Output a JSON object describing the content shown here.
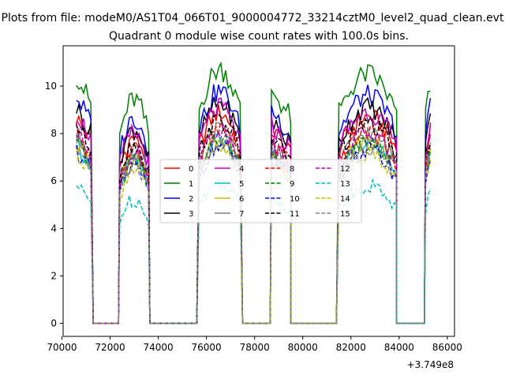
{
  "figure": {
    "suptitle": "Plots from file: modeM0/AS1T04_066T01_9000004772_33214cztM0_level2_quad_clean.evt",
    "title": "Quadrant 0 module wise count rates with 100.0s bins."
  },
  "chart_data": {
    "type": "line",
    "title": "Quadrant 0 module wise count rates with 100.0s bins.",
    "xlabel": "",
    "ylabel": "",
    "x_offset_label": "+3.749e8",
    "xlim": [
      70050,
      86300
    ],
    "ylim": [
      -0.55,
      11.7
    ],
    "xticks": [
      70000,
      72000,
      74000,
      76000,
      78000,
      80000,
      82000,
      84000,
      86000
    ],
    "xtick_labels": [
      "70000",
      "72000",
      "74000",
      "76000",
      "78000",
      "80000",
      "82000",
      "84000",
      "86000"
    ],
    "yticks": [
      0,
      2,
      4,
      6,
      8,
      10
    ],
    "ytick_labels": [
      "0",
      "2",
      "4",
      "6",
      "8",
      "10"
    ],
    "grid": false,
    "legend": {
      "placement": "center",
      "ncol": 4
    },
    "gaps_x": [
      [
        71300,
        72350
      ],
      [
        73650,
        75600
      ],
      [
        77500,
        78650
      ],
      [
        79500,
        81400
      ],
      [
        83900,
        85050
      ]
    ],
    "segments": [
      {
        "x_start": 70600,
        "x_end": 71200,
        "shape": "fall",
        "base": 1.0
      },
      {
        "x_start": 72400,
        "x_end": 73600,
        "shape": "hump",
        "base": 0.9
      },
      {
        "x_start": 75700,
        "x_end": 77400,
        "shape": "hump",
        "base": 1.02
      },
      {
        "x_start": 78700,
        "x_end": 79450,
        "shape": "fall",
        "base": 0.94
      },
      {
        "x_start": 81500,
        "x_end": 83850,
        "shape": "hump",
        "base": 1.0
      },
      {
        "x_start": 85100,
        "x_end": 85300,
        "shape": "rise",
        "base": 0.95
      }
    ],
    "series": [
      {
        "name": "0",
        "color": "#ff0000",
        "dash": "solid",
        "level": 8.7
      },
      {
        "name": "1",
        "color": "#008000",
        "dash": "solid",
        "level": 10.5
      },
      {
        "name": "2",
        "color": "#0000ff",
        "dash": "solid",
        "level": 9.6
      },
      {
        "name": "3",
        "color": "#000000",
        "dash": "solid",
        "level": 9.1
      },
      {
        "name": "4",
        "color": "#bf00bf",
        "dash": "solid",
        "level": 8.9
      },
      {
        "name": "5",
        "color": "#00bfbf",
        "dash": "solid",
        "level": 7.6
      },
      {
        "name": "6",
        "color": "#bfbf00",
        "dash": "solid",
        "level": 7.7
      },
      {
        "name": "7",
        "color": "#808080",
        "dash": "solid",
        "level": 8.0
      },
      {
        "name": "8",
        "color": "#ff0000",
        "dash": "dashed",
        "level": 8.1
      },
      {
        "name": "9",
        "color": "#008000",
        "dash": "dashed",
        "level": 7.6
      },
      {
        "name": "10",
        "color": "#0000ff",
        "dash": "dashed",
        "level": 7.3
      },
      {
        "name": "11",
        "color": "#000000",
        "dash": "dashed",
        "level": 8.4
      },
      {
        "name": "12",
        "color": "#bf00bf",
        "dash": "dashed",
        "level": 8.0
      },
      {
        "name": "13",
        "color": "#00bfbf",
        "dash": "dashed",
        "level": 5.8
      },
      {
        "name": "14",
        "color": "#bfbf00",
        "dash": "dashed",
        "level": 7.2
      },
      {
        "name": "15",
        "color": "#808080",
        "dash": "dashed",
        "level": 7.4
      }
    ]
  }
}
